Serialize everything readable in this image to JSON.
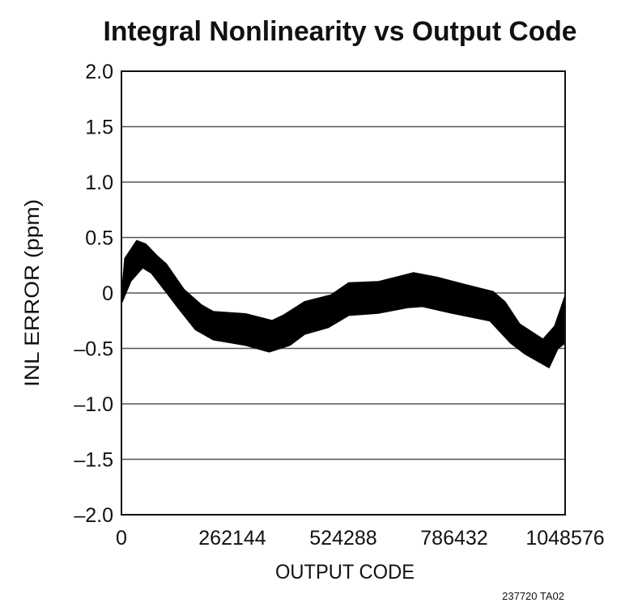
{
  "chart_data": {
    "type": "area",
    "title": "Integral Nonlinearity vs Output Code",
    "xlabel": "OUTPUT CODE",
    "ylabel": "INL ERROR (ppm)",
    "xlim": [
      0,
      1048576
    ],
    "ylim": [
      -2.0,
      2.0
    ],
    "xticks": [
      0,
      262144,
      524288,
      786432,
      1048576
    ],
    "xtick_labels": [
      "0",
      "262144",
      "524288",
      "786432",
      "1048576"
    ],
    "yticks": [
      2.0,
      1.5,
      1.0,
      0.5,
      0,
      -0.5,
      -1.0,
      -1.5,
      -2.0
    ],
    "ytick_labels": [
      "2.0",
      "1.5",
      "1.0",
      "0.5",
      "0",
      "–0.5",
      "–1.0",
      "–1.5",
      "–2.0"
    ],
    "grid": "horizontal",
    "band_color": "#000000",
    "upper": {
      "x": [
        0,
        8350,
        36180,
        57060,
        84890,
        105760,
        147500,
        189250,
        217080,
        293620,
        356240,
        384080,
        432780,
        495400,
        537150,
        606730,
        690230,
        745890,
        815480,
        878100,
        905930,
        940720,
        996390,
        1024220,
        1048576
      ],
      "y": [
        -0.06,
        0.31,
        0.47,
        0.44,
        0.33,
        0.26,
        0.03,
        -0.11,
        -0.17,
        -0.19,
        -0.25,
        -0.2,
        -0.08,
        -0.02,
        0.09,
        0.1,
        0.18,
        0.14,
        0.07,
        0.01,
        -0.08,
        -0.28,
        -0.42,
        -0.3,
        -0.03
      ]
    },
    "lower": {
      "x": [
        0,
        22270,
        50100,
        70970,
        105760,
        133590,
        175340,
        217080,
        293620,
        349280,
        397990,
        432780,
        488440,
        537150,
        606730,
        676310,
        711100,
        780680,
        871140,
        919850,
        954640,
        1010310,
        1031180,
        1048576
      ],
      "y": [
        -0.09,
        0.11,
        0.23,
        0.18,
        0.01,
        -0.13,
        -0.33,
        -0.42,
        -0.47,
        -0.53,
        -0.47,
        -0.37,
        -0.31,
        -0.2,
        -0.18,
        -0.13,
        -0.12,
        -0.18,
        -0.25,
        -0.45,
        -0.55,
        -0.67,
        -0.5,
        -0.45
      ]
    },
    "footnote": "237720 TA02"
  }
}
